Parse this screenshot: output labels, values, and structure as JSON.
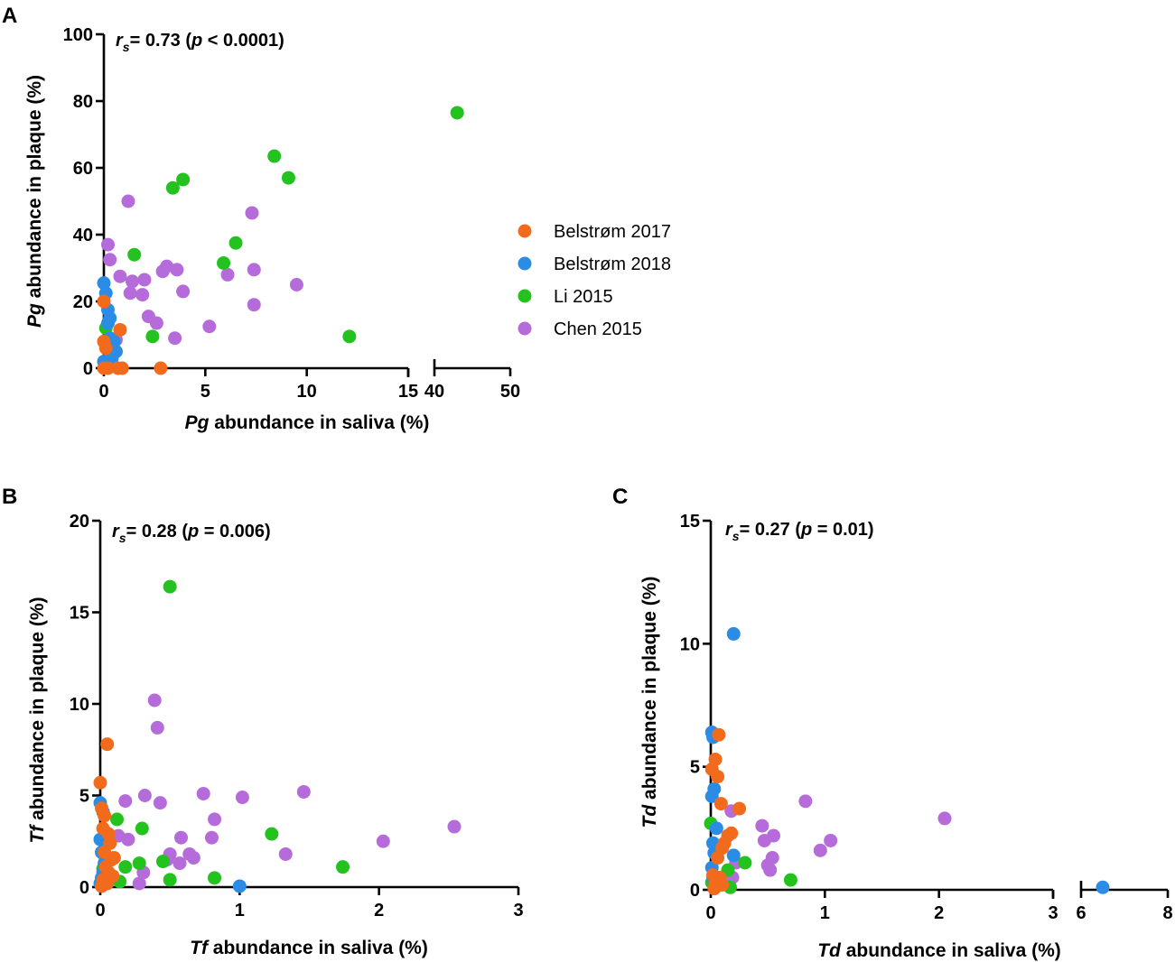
{
  "series_meta": [
    {
      "name": "Belstrøm 2017",
      "color": "#F26B1D"
    },
    {
      "name": "Belstrøm 2018",
      "color": "#2B8CE6"
    },
    {
      "name": "Li 2015",
      "color": "#23C21E"
    },
    {
      "name": "Chen 2015",
      "color": "#B66BDB"
    }
  ],
  "chart_data": [
    {
      "panel": "A",
      "type": "scatter",
      "stat_italic": "r",
      "stat_sub": "s",
      "stat_a": "= 0.73 (",
      "stat_p": "p",
      "stat_b": " < 0.0001)",
      "ylabel_italic": "Pg",
      "ylabel_rest": " abundance in plaque (%)",
      "xlabel_italic": "Pg",
      "xlabel_rest": " abundance in saliva (%)",
      "xlim": [
        0,
        50
      ],
      "xbreak": [
        15,
        40
      ],
      "ylim": [
        0,
        100
      ],
      "xticks": [
        0,
        5,
        10,
        15,
        40,
        50
      ],
      "yticks": [
        0,
        20,
        40,
        60,
        80,
        100
      ],
      "legend": [
        "Belstrøm 2017",
        "Belstrøm 2018",
        "Li 2015",
        "Chen 2015"
      ],
      "series": [
        {
          "name": "Belstrøm 2017",
          "x": [
            0,
            0,
            0.1,
            0,
            0.2,
            0.7,
            0.9,
            0.8,
            2.8
          ],
          "y": [
            20,
            8,
            6,
            0,
            0,
            0,
            0,
            11.5,
            0
          ]
        },
        {
          "name": "Belstrøm 2018",
          "x": [
            0,
            0.1,
            0.2,
            0.3,
            0.2,
            0.3,
            0.5,
            0.6,
            0.4,
            0,
            0.1,
            0.3
          ],
          "y": [
            25.5,
            22.5,
            17.5,
            15,
            13.5,
            9,
            8,
            5,
            3,
            2,
            1,
            0.5
          ]
        },
        {
          "name": "Li 2015",
          "x": [
            0.1,
            0.5,
            1.5,
            2.4,
            3.4,
            3.9,
            5.9,
            6.5,
            8.4,
            9.1,
            12.1,
            43
          ],
          "y": [
            12,
            5,
            34,
            9.5,
            54,
            56.5,
            31.5,
            37.5,
            63.5,
            57,
            9.5,
            76.5
          ]
        },
        {
          "name": "Chen 2015",
          "x": [
            0.2,
            0.3,
            0.6,
            0.8,
            1.2,
            1.3,
            1.4,
            1.9,
            2,
            2.2,
            2.6,
            2.9,
            3.1,
            3.5,
            3.6,
            3.9,
            5.2,
            6.1,
            7.3,
            7.4,
            7.4,
            9.5
          ],
          "y": [
            37,
            32.5,
            8.5,
            27.5,
            50,
            22.5,
            26,
            22,
            26.5,
            15.5,
            13.5,
            29,
            30.5,
            9,
            29.5,
            23,
            12.5,
            28,
            46.5,
            29.5,
            19,
            25
          ]
        }
      ]
    },
    {
      "panel": "B",
      "type": "scatter",
      "stat_italic": "r",
      "stat_sub": "s",
      "stat_a": "= 0.28 (",
      "stat_p": "p",
      "stat_b": " = 0.006)",
      "ylabel_italic": "Tf",
      "ylabel_rest": " abundance in plaque (%)",
      "xlabel_italic": "Tf",
      "xlabel_rest": " abundance in saliva (%)",
      "xlim": [
        0,
        3
      ],
      "ylim": [
        0,
        20
      ],
      "xticks": [
        0,
        1,
        2,
        3
      ],
      "yticks": [
        0,
        5,
        10,
        15,
        20
      ],
      "series": [
        {
          "name": "Belstrøm 2017",
          "x": [
            0,
            0.05,
            0.01,
            0.03,
            0.02,
            0.06,
            0.07,
            0.03,
            0.08,
            0.1,
            0.04,
            0.06,
            0.09,
            0.02,
            0.05,
            0.01
          ],
          "y": [
            5.7,
            7.8,
            4.3,
            3.9,
            3.2,
            2.9,
            2.4,
            1.9,
            1.5,
            1.6,
            1.1,
            0.8,
            0.6,
            0.4,
            0.2,
            0.05
          ]
        },
        {
          "name": "Belstrøm 2018",
          "x": [
            0,
            0.02,
            0,
            0.01,
            0.03,
            0.02,
            0.01,
            0,
            1
          ],
          "y": [
            4.6,
            4.1,
            2.6,
            1.9,
            1.3,
            0.8,
            0.5,
            0.2,
            0.05
          ]
        },
        {
          "name": "Li 2015",
          "x": [
            0.5,
            0.12,
            0.3,
            0.02,
            0.18,
            0.28,
            0.45,
            0.5,
            0.82,
            1.23,
            1.74,
            0.14
          ],
          "y": [
            16.4,
            3.7,
            3.2,
            1,
            1.1,
            1.3,
            1.4,
            0.4,
            0.5,
            2.9,
            1.1,
            0.3
          ]
        },
        {
          "name": "Chen 2015",
          "x": [
            0.39,
            0.41,
            0.74,
            1.02,
            1.46,
            2.54,
            2.03,
            1.33,
            0.8,
            0.82,
            0.43,
            0.18,
            0.32,
            0.58,
            0.5,
            0.64,
            0.67,
            0.57,
            0.48,
            0.31,
            0.13,
            0.2,
            0.28
          ],
          "y": [
            10.2,
            8.7,
            5.1,
            4.9,
            5.2,
            3.3,
            2.5,
            1.8,
            2.7,
            3.7,
            4.6,
            4.7,
            5,
            2.7,
            1.8,
            1.8,
            1.6,
            1.3,
            1.5,
            0.8,
            2.8,
            2.6,
            0.2
          ]
        }
      ]
    },
    {
      "panel": "C",
      "type": "scatter",
      "stat_italic": "r",
      "stat_sub": "s",
      "stat_a": "= 0.27 (",
      "stat_p": "p",
      "stat_b": " = 0.01)",
      "ylabel_italic": "Td",
      "ylabel_rest": " abundance in plaque (%)",
      "xlabel_italic": "Td",
      "xlabel_rest": " abundance in saliva (%)",
      "xlim": [
        0,
        8
      ],
      "xbreak": [
        3,
        6
      ],
      "ylim": [
        0,
        15
      ],
      "xticks": [
        0,
        1,
        2,
        3,
        6,
        8
      ],
      "yticks": [
        0,
        5,
        10,
        15
      ],
      "series": [
        {
          "name": "Belstrøm 2017",
          "x": [
            0.07,
            0.04,
            0.01,
            0.06,
            0.09,
            0.25,
            0.18,
            0.15,
            0.12,
            0.1,
            0.06,
            0.02,
            0.08,
            0.04,
            0.1,
            0.03
          ],
          "y": [
            6.3,
            5.3,
            4.9,
            4.6,
            3.5,
            3.3,
            2.3,
            2.2,
            1.9,
            1.7,
            1.3,
            0.6,
            0.5,
            0.3,
            0.2,
            0.05
          ]
        },
        {
          "name": "Belstrøm 2018",
          "x": [
            0.2,
            0.01,
            0.02,
            0.03,
            0.01,
            0.05,
            0.02,
            0.03,
            0.2,
            0.01,
            0.02,
            6.5
          ],
          "y": [
            10.4,
            6.4,
            6.2,
            4.1,
            3.8,
            2.5,
            1.9,
            1.5,
            1.4,
            0.9,
            0.5,
            0.1
          ]
        },
        {
          "name": "Li 2015",
          "x": [
            0.0,
            0.3,
            0.7,
            0.15,
            0.02,
            0.01,
            0.17
          ],
          "y": [
            2.7,
            1.1,
            0.4,
            0.8,
            1.9,
            0.3,
            0.1
          ]
        },
        {
          "name": "Chen 2015",
          "x": [
            0.83,
            2.05,
            0.18,
            0.45,
            0.55,
            1.05,
            0.96,
            0.47,
            0.54,
            0.5,
            0.52,
            0.22,
            0.19
          ],
          "y": [
            3.6,
            2.9,
            3.2,
            2.6,
            2.2,
            2,
            1.6,
            2,
            1.3,
            1,
            0.8,
            1.1,
            0.5
          ]
        }
      ]
    }
  ]
}
